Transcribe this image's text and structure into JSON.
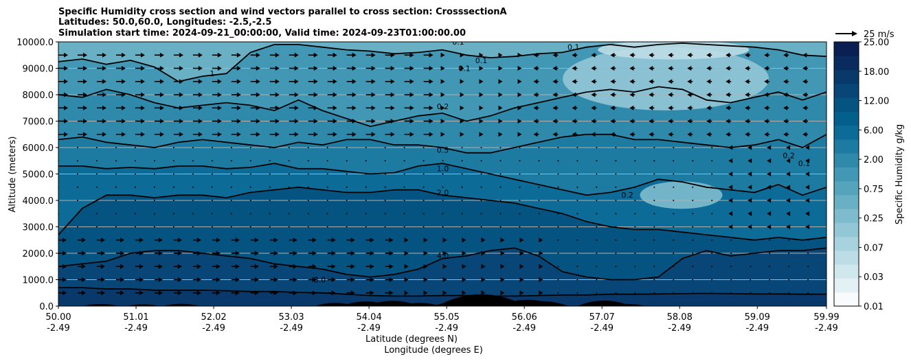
{
  "chart_data": {
    "type": "contourf",
    "title_lines": [
      "Specific Humidity cross section and wind vectors parallel to cross section: CrosssectionA",
      "Latitudes: 50.0,60.0, Longitudes: -2.5,-2.5",
      "Simulation start time: 2024-09-21_00:00:00, Valid time: 2024-09-23T01:00:00.00"
    ],
    "xlabel": "Latitude (degrees N)",
    "xlabel2": "Longitude (degrees E)",
    "ylabel": "Altitude (meters)",
    "xlim": [
      50.0,
      59.99
    ],
    "ylim": [
      0,
      10000
    ],
    "x_ticks": [
      {
        "lat": "50.00",
        "lon": "-2.49",
        "value": 50.0
      },
      {
        "lat": "51.01",
        "lon": "-2.49",
        "value": 51.01
      },
      {
        "lat": "52.02",
        "lon": "-2.49",
        "value": 52.02
      },
      {
        "lat": "53.03",
        "lon": "-2.49",
        "value": 53.03
      },
      {
        "lat": "54.04",
        "lon": "-2.49",
        "value": 54.04
      },
      {
        "lat": "55.05",
        "lon": "-2.49",
        "value": 55.05
      },
      {
        "lat": "56.06",
        "lon": "-2.49",
        "value": 56.06
      },
      {
        "lat": "57.07",
        "lon": "-2.49",
        "value": 57.07
      },
      {
        "lat": "58.08",
        "lon": "-2.49",
        "value": 58.08
      },
      {
        "lat": "59.09",
        "lon": "-2.49",
        "value": 59.09
      },
      {
        "lat": "59.99",
        "lon": "-2.49",
        "value": 59.99
      }
    ],
    "y_ticks": [
      {
        "label": "0.0",
        "value": 0
      },
      {
        "label": "1000.0",
        "value": 1000
      },
      {
        "label": "2000.0",
        "value": 2000
      },
      {
        "label": "3000.0",
        "value": 3000
      },
      {
        "label": "4000.0",
        "value": 4000
      },
      {
        "label": "5000.0",
        "value": 5000
      },
      {
        "label": "6000.0",
        "value": 6000
      },
      {
        "label": "7000.0",
        "value": 7000
      },
      {
        "label": "8000.0",
        "value": 8000
      },
      {
        "label": "9000.0",
        "value": 9000
      },
      {
        "label": "10000.0",
        "value": 10000
      }
    ],
    "grid": "horizontal",
    "colorbar": {
      "label": "Specific Humidity g/kg",
      "tick_labels": [
        "0.01",
        "0.03",
        "0.07",
        "0.25",
        "0.75",
        "2.00",
        "6.00",
        "12.00",
        "18.00",
        "25.00"
      ],
      "levels": [
        "0.01",
        "0.02",
        "0.03",
        "0.05",
        "0.07",
        "0.1",
        "0.25",
        "0.5",
        "0.75",
        "1.0",
        "2.00",
        "4.0",
        "6.00",
        "8.0",
        "12.00",
        "15.0",
        "18.00",
        "21.0",
        "25.00"
      ],
      "colors": [
        "#f7fbfc",
        "#e4f1f4",
        "#d0e7ed",
        "#bcdde6",
        "#a8d2de",
        "#93c7d6",
        "#7ebccd",
        "#69b0c4",
        "#55a4bb",
        "#4297b4",
        "#2f89aa",
        "#1d7aa0",
        "#0c6c97",
        "#03608c",
        "#055381",
        "#074676",
        "#09386a",
        "#0a2b5e",
        "#0a1f52"
      ]
    },
    "wind_key": {
      "label": "25 m/s",
      "value": 25
    },
    "contours": [
      {
        "level": "0.1",
        "y_profile": [
          9250,
          9350,
          9150,
          9300,
          9050,
          8500,
          8700,
          8800,
          9600,
          9900,
          9900,
          9800,
          9700,
          9650,
          9550,
          9600,
          9700,
          9500,
          9400,
          9450,
          9550,
          9600,
          9800,
          9900,
          9800,
          9900,
          9950,
          9900,
          9850,
          9800,
          9700,
          9500,
          9450
        ]
      },
      {
        "level": "0.2",
        "y_profile": [
          8000,
          7900,
          8200,
          8000,
          7700,
          7500,
          7600,
          7700,
          7600,
          7400,
          7800,
          7400,
          7100,
          6800,
          7000,
          7200,
          7300,
          7000,
          7200,
          7500,
          7700,
          7900,
          8100,
          8200,
          8100,
          8300,
          8200,
          7800,
          7700,
          7900,
          8100,
          7800,
          8100
        ]
      },
      {
        "level": "0.5",
        "y_profile": [
          6300,
          6400,
          6200,
          6100,
          6000,
          6200,
          6300,
          6200,
          6100,
          6000,
          6200,
          6100,
          6300,
          6300,
          6100,
          6100,
          6000,
          5800,
          5800,
          6000,
          6200,
          6400,
          6500,
          6500,
          6300,
          6300,
          6200,
          6100,
          6000,
          6100,
          6300,
          6000,
          6500
        ]
      },
      {
        "level": "1.0",
        "y_profile": [
          5300,
          5300,
          5200,
          5250,
          5200,
          5300,
          5300,
          5200,
          5250,
          5400,
          5200,
          5200,
          5100,
          5000,
          5050,
          5300,
          5400,
          5200,
          5000,
          4800,
          4600,
          4400,
          4200,
          4300,
          4500,
          4800,
          4700,
          4500,
          4400,
          4300,
          4600,
          4200,
          4500
        ]
      },
      {
        "level": "2.0",
        "y_profile": [
          2700,
          3700,
          4200,
          4200,
          4100,
          4200,
          4200,
          4100,
          4300,
          4400,
          4500,
          4400,
          4300,
          4300,
          4400,
          4400,
          4200,
          4100,
          4000,
          3900,
          3700,
          3500,
          3200,
          3000,
          2900,
          2900,
          2800,
          2700,
          2600,
          2500,
          2600,
          2500,
          2600
        ]
      },
      {
        "level": "4.0",
        "y_profile": [
          1500,
          1600,
          1700,
          2000,
          2100,
          2100,
          2000,
          1900,
          1800,
          1600,
          1500,
          1400,
          1200,
          1100,
          1200,
          1400,
          1800,
          1900,
          2100,
          2200,
          1900,
          1300,
          1100,
          1000,
          1000,
          1100,
          1800,
          2100,
          1900,
          2000,
          2100,
          2100,
          2200
        ]
      },
      {
        "level": "8.0",
        "y_profile": [
          700,
          700,
          650,
          650,
          600,
          600,
          600,
          580,
          550,
          550,
          520,
          500,
          450,
          400,
          380,
          380,
          400,
          400,
          380,
          380,
          400,
          420,
          420,
          450,
          450,
          460,
          470,
          480,
          470,
          460,
          460,
          450,
          450
        ]
      }
    ],
    "contour_labels": [
      {
        "text": "0.1",
        "x": 55.28,
        "y": 8900
      },
      {
        "text": "0.1",
        "x": 55.2,
        "y": 9900
      },
      {
        "text": "0.1",
        "x": 56.7,
        "y": 9700
      },
      {
        "text": "0.1",
        "x": 55.5,
        "y": 9200
      },
      {
        "text": "0.2",
        "x": 55.0,
        "y": 7450
      },
      {
        "text": "0.5",
        "x": 55.0,
        "y": 5800
      },
      {
        "text": "1.0",
        "x": 55.0,
        "y": 5100
      },
      {
        "text": "2.0",
        "x": 55.0,
        "y": 4200
      },
      {
        "text": "4.0",
        "x": 55.0,
        "y": 1800
      },
      {
        "text": "8.0",
        "x": 53.4,
        "y": 900
      },
      {
        "text": "0.2",
        "x": 57.4,
        "y": 4100
      },
      {
        "text": "0.2",
        "x": 59.5,
        "y": 5600
      },
      {
        "text": "0.1",
        "x": 59.7,
        "y": 5300
      },
      {
        "text": "1",
        "x": 52.0,
        "y": 8700
      }
    ],
    "terrain_peaks": [
      {
        "x": 50.55,
        "h": 100
      },
      {
        "x": 51.1,
        "h": 80
      },
      {
        "x": 51.6,
        "h": 110
      },
      {
        "x": 53.6,
        "h": 150
      },
      {
        "x": 54.0,
        "h": 220
      },
      {
        "x": 54.35,
        "h": 250
      },
      {
        "x": 54.7,
        "h": 150
      },
      {
        "x": 55.2,
        "h": 220
      },
      {
        "x": 55.5,
        "h": 560
      },
      {
        "x": 55.75,
        "h": 280
      },
      {
        "x": 56.1,
        "h": 300
      },
      {
        "x": 56.3,
        "h": 230
      },
      {
        "x": 57.1,
        "h": 260
      },
      {
        "x": 57.4,
        "h": 100
      }
    ],
    "wind_columns_x": [
      50.0,
      50.25,
      50.5,
      50.75,
      51.0,
      51.25,
      51.5,
      51.75,
      52.0,
      52.25,
      52.5,
      52.75,
      53.0,
      53.25,
      53.5,
      53.75,
      54.0,
      54.25,
      54.5,
      54.75,
      55.0,
      55.25,
      55.5,
      55.75,
      56.0,
      56.25,
      56.5,
      56.75,
      57.0,
      57.25,
      57.5,
      57.75,
      58.0,
      58.25,
      58.5,
      58.75,
      59.0,
      59.25,
      59.5,
      59.75
    ],
    "wind_rows_y": [
      500,
      1000,
      1500,
      2000,
      2500,
      3000,
      3500,
      4000,
      4500,
      5000,
      5500,
      6000,
      6500,
      7000,
      7500,
      8000,
      8500,
      9000,
      9500
    ]
  }
}
